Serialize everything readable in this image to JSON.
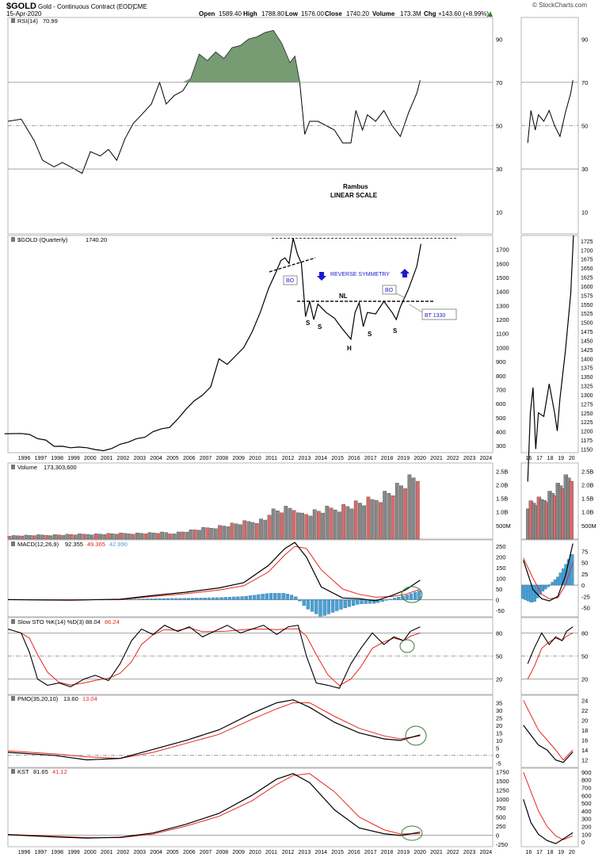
{
  "header": {
    "symbol": "$GOLD",
    "name": "Gold - Continuous Contract (EOD)",
    "exchange": "CME",
    "date": "15-Apr-2020",
    "brand": "© StockCharts.com",
    "open_label": "Open",
    "open": "1589.40",
    "high_label": "High",
    "high": "1788.80",
    "low_label": "Low",
    "low": "1576.00",
    "close_label": "Close",
    "close": "1740.20",
    "volume_label": "Volume",
    "volume": "173.3M",
    "chg_label": "Chg",
    "chg": "+143.60 (+8.99%)",
    "chg_icon": "up-arrow"
  },
  "colors": {
    "line": "#000000",
    "signal": "#e8261e",
    "histogram": "#4a9fd4",
    "vol_up": "#888888",
    "vol_down": "#d86a6a",
    "rsi_fill": "#5f8a5a",
    "annotation_blue": "#1a1ad0"
  },
  "years": [
    "1996",
    "1997",
    "1998",
    "1999",
    "2000",
    "2001",
    "2002",
    "2003",
    "2004",
    "2005",
    "2006",
    "2007",
    "2008",
    "2009",
    "2010",
    "2011",
    "2012",
    "2013",
    "2014",
    "2015",
    "2016",
    "2017",
    "2018",
    "2019",
    "2020",
    "2021",
    "2022",
    "2023",
    "2024"
  ],
  "mini_years": [
    "16",
    "17",
    "18",
    "19",
    "20"
  ],
  "panels": {
    "rsi": {
      "label": "RSI(14)",
      "value": "70.99",
      "ticks": [
        "90",
        "70",
        "50",
        "30",
        "10"
      ],
      "note_line1": "Rambus",
      "note_line2": "LINEAR SCALE"
    },
    "price": {
      "label": "$GOLD (Quarterly)",
      "value": "1740.20",
      "ticks": [
        "1700",
        "1600",
        "1500",
        "1400",
        "1300",
        "1200",
        "1100",
        "1000",
        "900",
        "800",
        "700",
        "600",
        "500",
        "400",
        "300"
      ],
      "mini_ticks": [
        "1725",
        "1700",
        "1675",
        "1650",
        "1625",
        "1600",
        "1575",
        "1550",
        "1525",
        "1500",
        "1475",
        "1450",
        "1425",
        "1400",
        "1375",
        "1350",
        "1325",
        "1300",
        "1275",
        "1250",
        "1225",
        "1200",
        "1175",
        "1150"
      ],
      "annotations": {
        "bo1": "BO",
        "bo2": "BO",
        "reverse_symmetry": "REVERSE SYMMETRY",
        "nl": "NL",
        "s1": "S",
        "s2": "S",
        "h": "H",
        "s3": "S",
        "s4": "S",
        "bt": "BT 1330"
      }
    },
    "volume": {
      "label": "Volume",
      "value": "173,303,600",
      "ticks": [
        "2.5B",
        "2.0B",
        "1.5B",
        "1.0B",
        "500M"
      ]
    },
    "macd": {
      "label": "MACD(12,26,9)",
      "value1": "92.355",
      "value2": "49.365",
      "value3": "42.990",
      "ticks": [
        "250",
        "200",
        "150",
        "100",
        "50",
        "0",
        "-50"
      ],
      "mini_ticks": [
        "75",
        "50",
        "25",
        "0",
        "-25",
        "-50"
      ]
    },
    "sto": {
      "label": "Slow STO %K(14) %D(3)",
      "value1": "88.04",
      "value2": "86.24",
      "ticks": [
        "80",
        "50",
        "20"
      ]
    },
    "pmo": {
      "label": "PMO(35,20,10)",
      "value1": "13.60",
      "value2": "13.04",
      "ticks": [
        "35",
        "30",
        "25",
        "20",
        "15",
        "10",
        "5",
        "0",
        "-5"
      ],
      "mini_ticks": [
        "24",
        "22",
        "20",
        "18",
        "16",
        "14",
        "12"
      ]
    },
    "kst": {
      "label": "KST",
      "value1": "81.65",
      "value2": "41.12",
      "ticks": [
        "1750",
        "1500",
        "1250",
        "1000",
        "750",
        "500",
        "250",
        "0",
        "-250"
      ],
      "mini_ticks": [
        "900",
        "800",
        "700",
        "600",
        "500",
        "400",
        "300",
        "200",
        "100",
        "0"
      ]
    }
  },
  "chart_data": {
    "type": "line",
    "title": "$GOLD (Quarterly)",
    "x_range": [
      1996,
      2024
    ],
    "series": [
      {
        "name": "$GOLD",
        "x": [
          1995.0,
          1996.0,
          1996.5,
          1997.0,
          1997.5,
          1998.0,
          1998.5,
          1999.0,
          1999.5,
          2000.0,
          2000.5,
          2001.0,
          2001.5,
          2002.0,
          2002.5,
          2003.0,
          2003.5,
          2004.0,
          2004.5,
          2005.0,
          2005.5,
          2006.0,
          2006.5,
          2007.0,
          2007.5,
          2008.0,
          2008.5,
          2009.0,
          2009.5,
          2010.0,
          2010.5,
          2011.0,
          2011.5,
          2011.75,
          2012.0,
          2012.25,
          2012.5,
          2012.75,
          2013.0,
          2013.25,
          2013.5,
          2013.75,
          2014.0,
          2014.5,
          2015.0,
          2015.5,
          2016.0,
          2016.25,
          2016.5,
          2016.75,
          2017.0,
          2017.5,
          2018.0,
          2018.5,
          2018.75,
          2019.0,
          2019.5,
          2020.0,
          2020.25
        ],
        "y": [
          385,
          387,
          380,
          350,
          340,
          295,
          296,
          285,
          290,
          285,
          272,
          264,
          280,
          310,
          325,
          350,
          360,
          400,
          420,
          430,
          490,
          560,
          620,
          660,
          720,
          920,
          880,
          940,
          1000,
          1110,
          1250,
          1420,
          1550,
          1620,
          1640,
          1600,
          1780,
          1670,
          1600,
          1220,
          1330,
          1200,
          1310,
          1250,
          1210,
          1130,
          1060,
          1250,
          1320,
          1150,
          1250,
          1240,
          1330,
          1250,
          1200,
          1290,
          1420,
          1580,
          1740
        ]
      }
    ],
    "ylim": [
      250,
      1800
    ],
    "indicators": {
      "rsi_14_last": 70.99,
      "macd_last": [
        92.355,
        49.365,
        42.99
      ],
      "slow_sto_last": [
        88.04,
        86.24
      ],
      "pmo_last": [
        13.6,
        13.04
      ],
      "kst_last": [
        81.65,
        41.12
      ],
      "volume_last": 173303600
    }
  }
}
